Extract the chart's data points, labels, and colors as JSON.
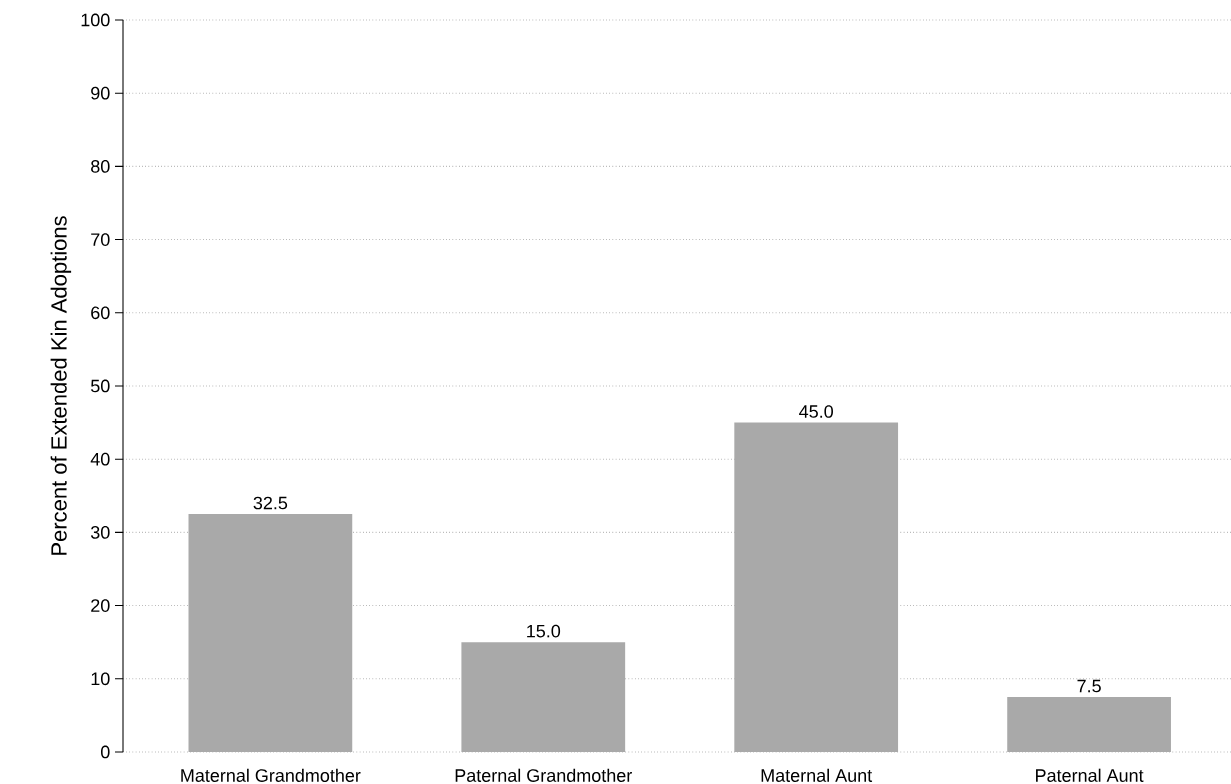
{
  "chart_data": {
    "type": "bar",
    "ylabel": "Percent of Extended Kin Adoptions",
    "categories": [
      "Maternal Grandmother",
      "Paternal Grandmother",
      "Maternal Aunt",
      "Paternal Aunt"
    ],
    "values": [
      32.5,
      15.0,
      45.0,
      7.5
    ],
    "value_labels": [
      "32.5",
      "15.0",
      "45.0",
      "7.5"
    ],
    "color": "#a9a9a9",
    "ylim": [
      0,
      100
    ],
    "yticks": [
      0,
      10,
      20,
      30,
      40,
      50,
      60,
      70,
      80,
      90,
      100
    ],
    "grid": "y"
  }
}
